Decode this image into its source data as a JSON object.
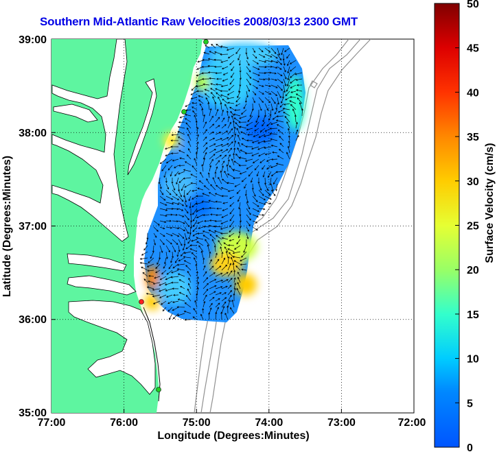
{
  "title": "Southern Mid-Atlantic Raw Velocities 2008/03/13 2300 GMT",
  "x_axis": {
    "label": "Longitude (Degrees:Minutes)",
    "ticks": [
      "77:00",
      "76:00",
      "75:00",
      "74:00",
      "73:00",
      "72:00"
    ],
    "range_deg_west": [
      77,
      72
    ]
  },
  "y_axis": {
    "label": "Latitude (Degrees:Minutes)",
    "ticks": [
      "39:00",
      "38:00",
      "37:00",
      "36:00",
      "35:00"
    ],
    "range_deg_north": [
      35,
      39
    ]
  },
  "colorbar": {
    "label": "Surface Velocity (cm/s)",
    "ticks": [
      "50",
      "45",
      "40",
      "35",
      "30",
      "25",
      "20",
      "15",
      "10",
      "5",
      "0"
    ],
    "min": 0,
    "max": 50,
    "colormap": "jet"
  },
  "colors": {
    "land": "#5ef5a0",
    "water": "#ffffff",
    "bathymetry": "#909090",
    "grid": "#000000",
    "title": "#0000e6",
    "station_active": "#22cc22",
    "station_highlight": "#ff2020"
  },
  "grid": "dotted",
  "overlay": "surface current vectors (black arrows)"
}
